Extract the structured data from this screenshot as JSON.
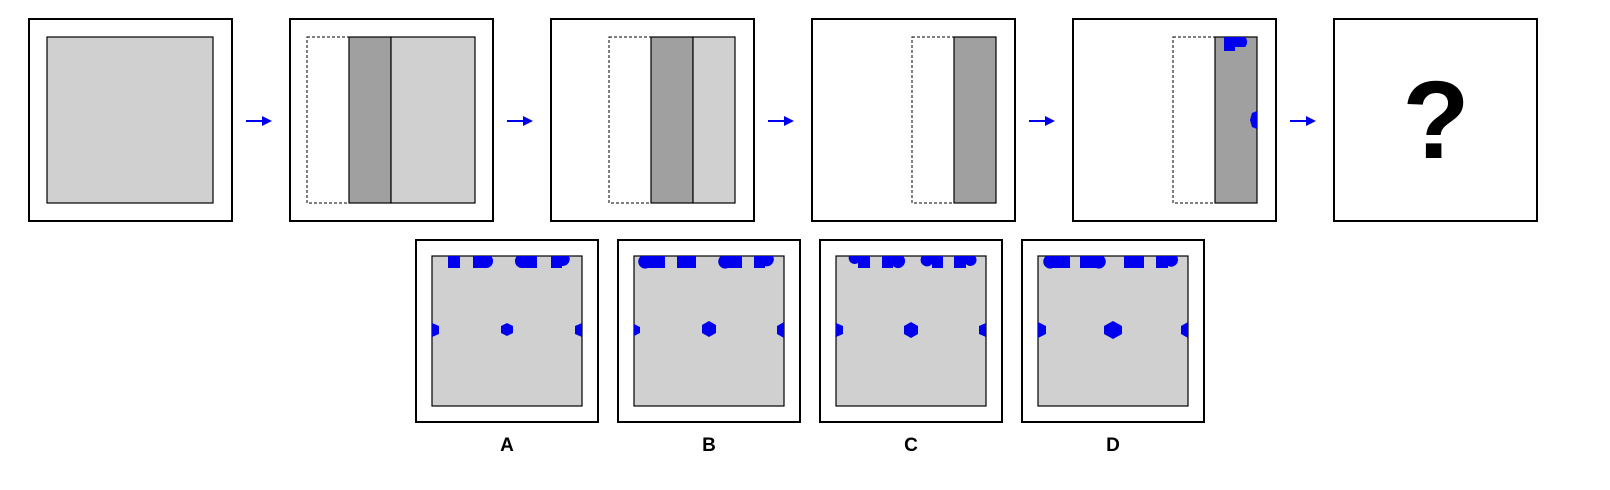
{
  "puzzle": {
    "question_mark": "?",
    "options": [
      {
        "label": "A"
      },
      {
        "label": "B"
      },
      {
        "label": "C"
      },
      {
        "label": "D"
      }
    ]
  },
  "colors": {
    "sheet": "#d0d0d0",
    "folded": "#a0a0a0",
    "hole": "#0000ee",
    "arrow": "#0000ee"
  }
}
